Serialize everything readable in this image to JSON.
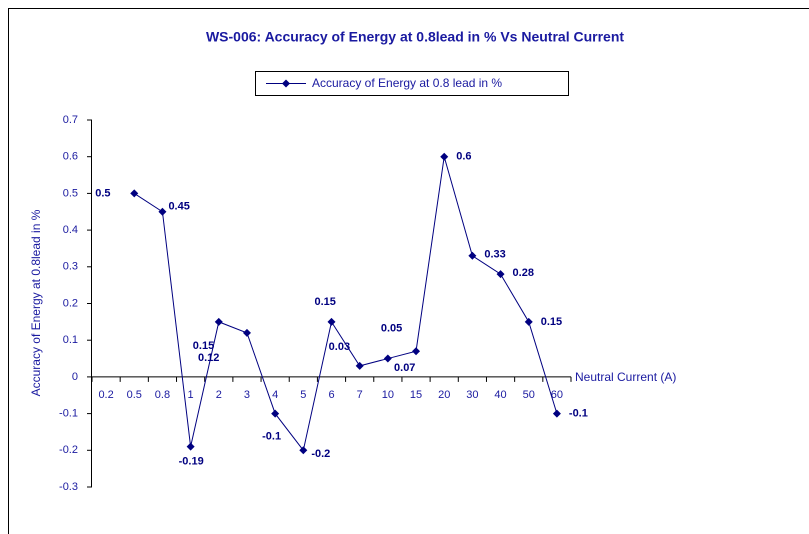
{
  "chart_data": {
    "type": "line",
    "title": "WS-006: Accuracy of Energy at 0.8lead in % Vs Neutral Current",
    "x_label": "Neutral Current (A)",
    "y_label": "Accuracy of Energy at 0.8lead in %",
    "categories": [
      "0.2",
      "0.5",
      "0.8",
      "1",
      "2",
      "3",
      "4",
      "5",
      "6",
      "7",
      "10",
      "15",
      "20",
      "30",
      "40",
      "50",
      "60"
    ],
    "series": [
      {
        "name": "Accuracy of Energy at 0.8 lead in %",
        "color": "#000080",
        "values": [
          null,
          0.5,
          0.45,
          -0.19,
          0.15,
          0.12,
          -0.1,
          -0.2,
          0.15,
          0.03,
          0.05,
          0.07,
          0.6,
          0.33,
          0.28,
          0.15,
          -0.1
        ]
      }
    ],
    "ylim": [
      -0.3,
      0.7
    ],
    "yticks": [
      -0.3,
      -0.2,
      -0.1,
      0,
      0.1,
      0.2,
      0.3,
      0.4,
      0.5,
      0.6,
      0.7
    ],
    "legend": "top"
  }
}
